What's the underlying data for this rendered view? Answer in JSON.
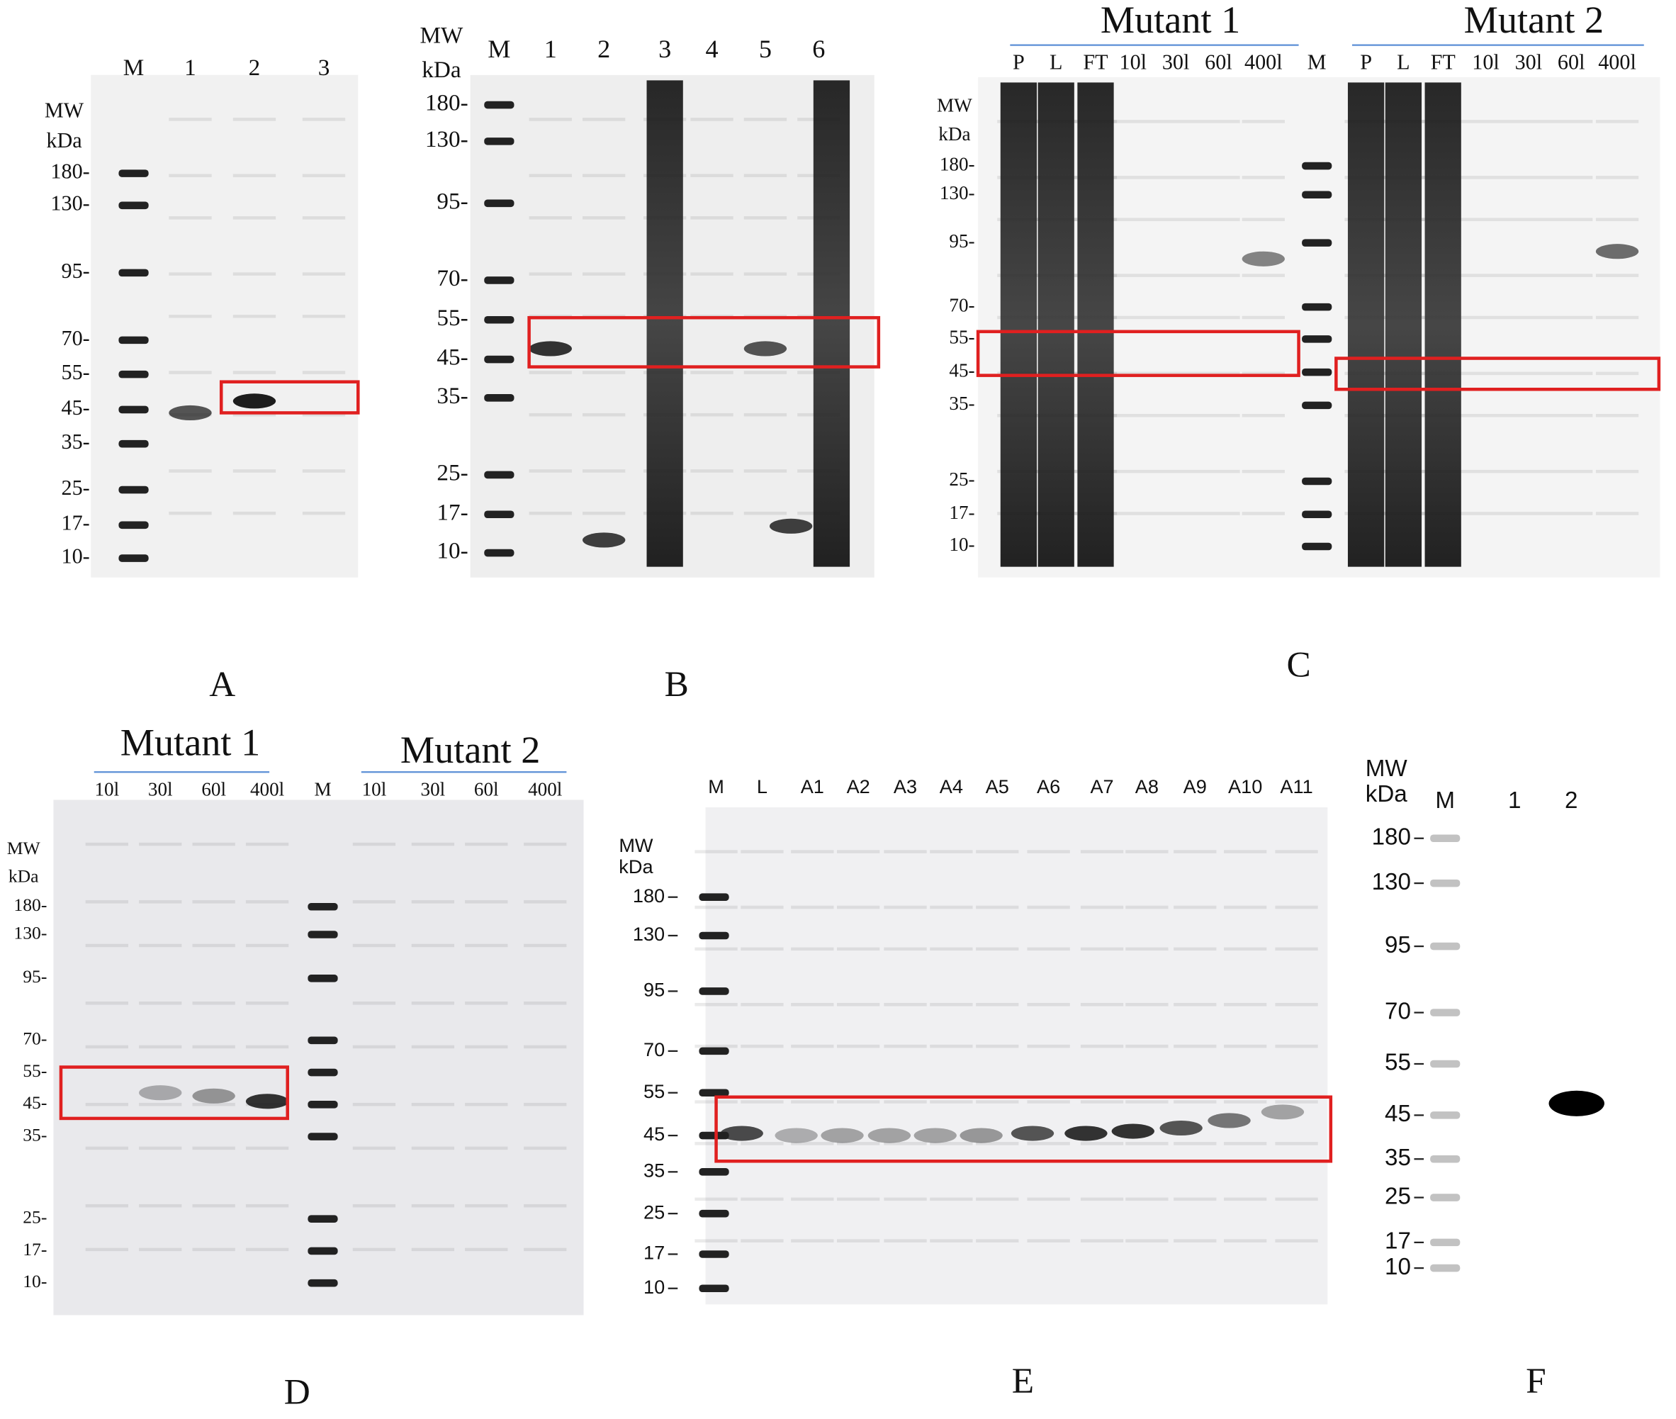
{
  "panels": [
    {
      "letter": "A",
      "mw": [
        "MW",
        "kDa"
      ],
      "lanes": [
        "M",
        "1",
        "2",
        "3"
      ],
      "markers": [
        "180-",
        "130-",
        "95-",
        "70-",
        "55-",
        "45-",
        "35-",
        "25-",
        "17-",
        "10-"
      ]
    },
    {
      "letter": "B",
      "mw": [
        "MW",
        "kDa"
      ],
      "lanes": [
        "M",
        "1",
        "2",
        "3",
        "4",
        "5",
        "6"
      ],
      "markers": [
        "180-",
        "130-",
        "95-",
        "70-",
        "55-",
        "45-",
        "35-",
        "25-",
        "17-",
        "10-"
      ]
    },
    {
      "letter": "C",
      "mw": [
        "MW",
        "kDa"
      ],
      "groups": [
        "Mutant 1",
        "Mutant 2"
      ],
      "lanes": [
        "P",
        "L",
        "FT",
        "10l",
        "30l",
        "60l",
        "400l",
        "M",
        "P",
        "L",
        "FT",
        "10l",
        "30l",
        "60l",
        "400l"
      ],
      "markers": [
        "180-",
        "130-",
        "95-",
        "70-",
        "55-",
        "45-",
        "35-",
        "25-",
        "17-",
        "10-"
      ]
    },
    {
      "letter": "D",
      "mw": [
        "MW",
        "kDa"
      ],
      "groups": [
        "Mutant 1",
        "Mutant 2"
      ],
      "lanes": [
        "10l",
        "30l",
        "60l",
        "400l",
        "M",
        "10l",
        "30l",
        "60l",
        "400l"
      ],
      "markers": [
        "180-",
        "130-",
        "95-",
        "70-",
        "55-",
        "45-",
        "35-",
        "25-",
        "17-",
        "10-"
      ]
    },
    {
      "letter": "E",
      "mw": [
        "MW",
        "kDa"
      ],
      "lanes": [
        "M",
        "L",
        "A1",
        "A2",
        "A3",
        "A4",
        "A5",
        "A6",
        "A7",
        "A8",
        "A9",
        "A10",
        "A11"
      ],
      "markers": [
        "180",
        "130",
        "95",
        "70",
        "55",
        "45",
        "35",
        "25",
        "17",
        "10"
      ]
    },
    {
      "letter": "F",
      "mw": [
        "MW",
        "kDa"
      ],
      "lanes": [
        "M",
        "1",
        "2"
      ],
      "markers": [
        "180",
        "130",
        "95",
        "70",
        "55",
        "45",
        "35",
        "25",
        "17",
        "10"
      ]
    }
  ]
}
